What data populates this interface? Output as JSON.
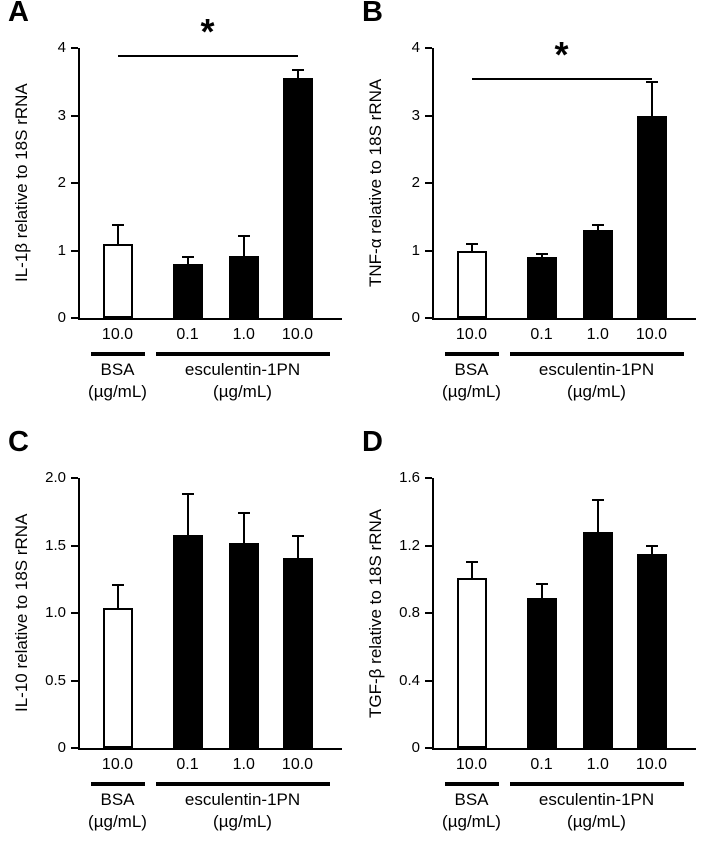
{
  "figure": {
    "panels": [
      "A",
      "B",
      "C",
      "D"
    ]
  },
  "chart_data": [
    {
      "type": "bar",
      "panel": "A",
      "title": "",
      "xlabel": "",
      "ylabel": "IL-1β relative to 18S rRNA",
      "ylim": [
        0,
        4
      ],
      "ytick_values": [
        0,
        1,
        2,
        3,
        4
      ],
      "ytick_labels": [
        "0",
        "1",
        "2",
        "3",
        "4"
      ],
      "categories": [
        "10.0",
        "0.1",
        "1.0",
        "10.0"
      ],
      "values": [
        1.1,
        0.8,
        0.92,
        3.55
      ],
      "errors": [
        0.28,
        0.1,
        0.3,
        0.12
      ],
      "bar_fills": [
        "#ffffff",
        "#000000",
        "#000000",
        "#000000"
      ],
      "groups": [
        {
          "label": "BSA",
          "unit": "(µg/mL)",
          "bars": [
            0
          ]
        },
        {
          "label": "esculentin-1PN",
          "unit": "(µg/mL)",
          "bars": [
            1,
            2,
            3
          ]
        }
      ],
      "significance": {
        "from": 0,
        "to": 3,
        "y": 3.9,
        "label": "*"
      }
    },
    {
      "type": "bar",
      "panel": "B",
      "title": "",
      "xlabel": "",
      "ylabel": "TNF-α relative to 18S rRNA",
      "ylim": [
        0,
        4
      ],
      "ytick_values": [
        0,
        1,
        2,
        3,
        4
      ],
      "ytick_labels": [
        "0",
        "1",
        "2",
        "3",
        "4"
      ],
      "categories": [
        "10.0",
        "0.1",
        "1.0",
        "10.0"
      ],
      "values": [
        1.0,
        0.9,
        1.3,
        3.0
      ],
      "errors": [
        0.1,
        0.05,
        0.08,
        0.5
      ],
      "bar_fills": [
        "#ffffff",
        "#000000",
        "#000000",
        "#000000"
      ],
      "groups": [
        {
          "label": "BSA",
          "unit": "(µg/mL)",
          "bars": [
            0
          ]
        },
        {
          "label": "esculentin-1PN",
          "unit": "(µg/mL)",
          "bars": [
            1,
            2,
            3
          ]
        }
      ],
      "significance": {
        "from": 0,
        "to": 3,
        "y": 3.55,
        "label": "*"
      }
    },
    {
      "type": "bar",
      "panel": "C",
      "title": "",
      "xlabel": "",
      "ylabel": "IL-10 relative to 18S rRNA",
      "ylim": [
        0,
        2.0
      ],
      "ytick_values": [
        0,
        0.5,
        1.0,
        1.5,
        2.0
      ],
      "ytick_labels": [
        "0",
        "0.5",
        "1.0",
        "1.5",
        "2.0"
      ],
      "categories": [
        "10.0",
        "0.1",
        "1.0",
        "10.0"
      ],
      "values": [
        1.04,
        1.58,
        1.52,
        1.41
      ],
      "errors": [
        0.17,
        0.3,
        0.22,
        0.16
      ],
      "bar_fills": [
        "#ffffff",
        "#000000",
        "#000000",
        "#000000"
      ],
      "groups": [
        {
          "label": "BSA",
          "unit": "(µg/mL)",
          "bars": [
            0
          ]
        },
        {
          "label": "esculentin-1PN",
          "unit": "(µg/mL)",
          "bars": [
            1,
            2,
            3
          ]
        }
      ],
      "significance": null
    },
    {
      "type": "bar",
      "panel": "D",
      "title": "",
      "xlabel": "",
      "ylabel": "TGF-β relative to 18S rRNA",
      "ylim": [
        0,
        1.6
      ],
      "ytick_values": [
        0,
        0.4,
        0.8,
        1.2,
        1.6
      ],
      "ytick_labels": [
        "0",
        "0.4",
        "0.8",
        "1.2",
        "1.6"
      ],
      "categories": [
        "10.0",
        "0.1",
        "1.0",
        "10.0"
      ],
      "values": [
        1.01,
        0.89,
        1.28,
        1.15
      ],
      "errors": [
        0.09,
        0.08,
        0.19,
        0.05
      ],
      "bar_fills": [
        "#ffffff",
        "#000000",
        "#000000",
        "#000000"
      ],
      "groups": [
        {
          "label": "BSA",
          "unit": "(µg/mL)",
          "bars": [
            0
          ]
        },
        {
          "label": "esculentin-1PN",
          "unit": "(µg/mL)",
          "bars": [
            1,
            2,
            3
          ]
        }
      ],
      "significance": null
    }
  ]
}
